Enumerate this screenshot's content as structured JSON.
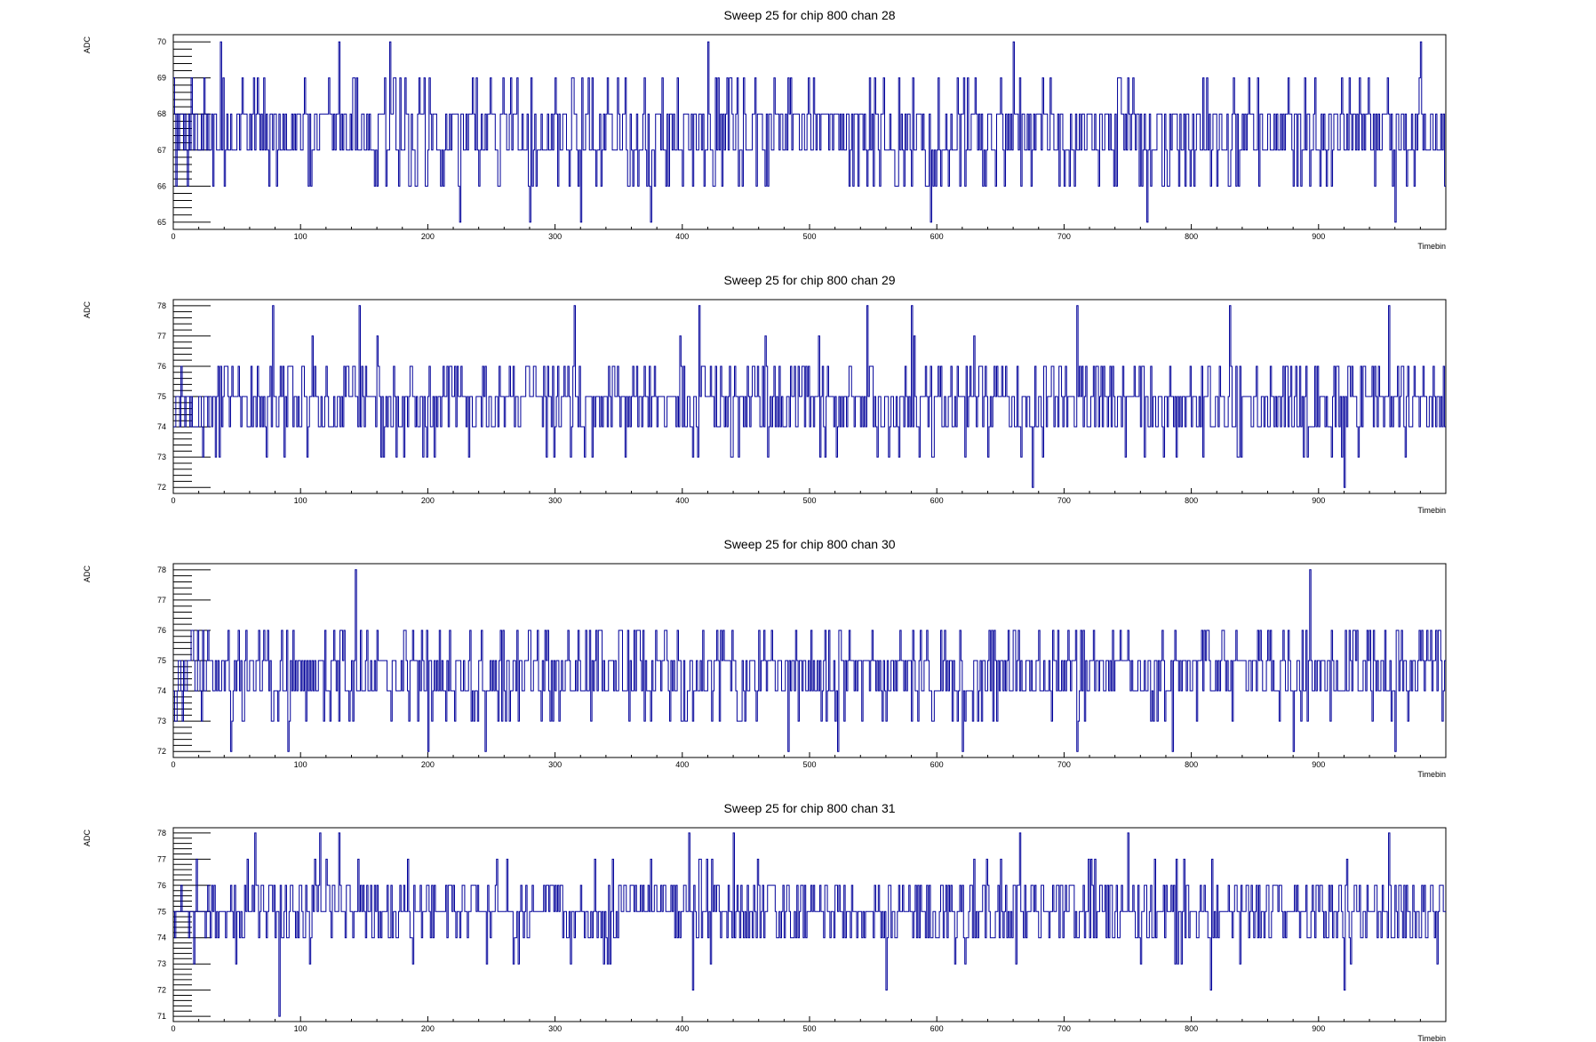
{
  "chart_data": [
    {
      "type": "line",
      "title": "Sweep 25 for chip 800 chan 28",
      "xlabel": "Timebin",
      "ylabel": "ADC",
      "xlim": [
        0,
        1000
      ],
      "ylim": [
        64.8,
        70.2
      ],
      "yticks": [
        65,
        66,
        67,
        68,
        69,
        70
      ],
      "xticks": [
        0,
        100,
        200,
        300,
        400,
        500,
        600,
        700,
        800,
        900
      ],
      "baseline": 67.5,
      "extremes": [
        [
          37,
          70
        ],
        [
          130,
          70
        ],
        [
          170,
          70
        ],
        [
          225,
          65
        ],
        [
          280,
          65
        ],
        [
          320,
          65
        ],
        [
          375,
          65
        ],
        [
          420,
          70
        ],
        [
          595,
          65
        ],
        [
          660,
          70
        ],
        [
          765,
          65
        ],
        [
          960,
          65
        ],
        [
          980,
          70
        ]
      ],
      "line_color": "#000099",
      "series": [
        {
          "name": "",
          "values": []
        }
      ]
    },
    {
      "type": "line",
      "title": "Sweep 25 for chip 800 chan 29",
      "xlabel": "Timebin",
      "ylabel": "ADC",
      "xlim": [
        0,
        1000
      ],
      "ylim": [
        71.8,
        78.2
      ],
      "yticks": [
        72,
        73,
        74,
        75,
        76,
        77,
        78
      ],
      "xticks": [
        0,
        100,
        200,
        300,
        400,
        500,
        600,
        700,
        800,
        900
      ],
      "baseline": 74.8,
      "extremes": [
        [
          78,
          78
        ],
        [
          146,
          78
        ],
        [
          315,
          78
        ],
        [
          413,
          78
        ],
        [
          545,
          78
        ],
        [
          580,
          78
        ],
        [
          675,
          72
        ],
        [
          710,
          78
        ],
        [
          830,
          78
        ],
        [
          920,
          72
        ],
        [
          955,
          78
        ]
      ],
      "line_color": "#000099",
      "series": [
        {
          "name": "",
          "values": []
        }
      ]
    },
    {
      "type": "line",
      "title": "Sweep 25 for chip 800 chan 30",
      "xlabel": "Timebin",
      "ylabel": "ADC",
      "xlim": [
        0,
        1000
      ],
      "ylim": [
        71.8,
        78.2
      ],
      "yticks": [
        72,
        73,
        74,
        75,
        76,
        77,
        78
      ],
      "xticks": [
        0,
        100,
        200,
        300,
        400,
        500,
        600,
        700,
        800,
        900
      ],
      "baseline": 74.6,
      "extremes": [
        [
          45,
          72
        ],
        [
          90,
          72
        ],
        [
          143,
          78
        ],
        [
          200,
          72
        ],
        [
          245,
          72
        ],
        [
          483,
          72
        ],
        [
          522,
          72
        ],
        [
          620,
          72
        ],
        [
          710,
          72
        ],
        [
          785,
          72
        ],
        [
          880,
          72
        ],
        [
          893,
          78
        ],
        [
          960,
          72
        ]
      ],
      "line_color": "#000099",
      "series": [
        {
          "name": "",
          "values": []
        }
      ]
    },
    {
      "type": "line",
      "title": "Sweep 25 for chip 800 chan 31",
      "xlabel": "Timebin",
      "ylabel": "ADC",
      "xlim": [
        0,
        1000
      ],
      "ylim": [
        70.8,
        78.2
      ],
      "yticks": [
        71,
        72,
        73,
        74,
        75,
        76,
        77,
        78
      ],
      "xticks": [
        0,
        100,
        200,
        300,
        400,
        500,
        600,
        700,
        800,
        900
      ],
      "baseline": 75.0,
      "extremes": [
        [
          64,
          78
        ],
        [
          83,
          71
        ],
        [
          115,
          78
        ],
        [
          130,
          78
        ],
        [
          405,
          78
        ],
        [
          408,
          72
        ],
        [
          440,
          78
        ],
        [
          560,
          72
        ],
        [
          665,
          78
        ],
        [
          750,
          78
        ],
        [
          815,
          72
        ],
        [
          920,
          72
        ],
        [
          955,
          78
        ]
      ],
      "line_color": "#000099",
      "series": [
        {
          "name": "",
          "values": []
        }
      ]
    }
  ]
}
